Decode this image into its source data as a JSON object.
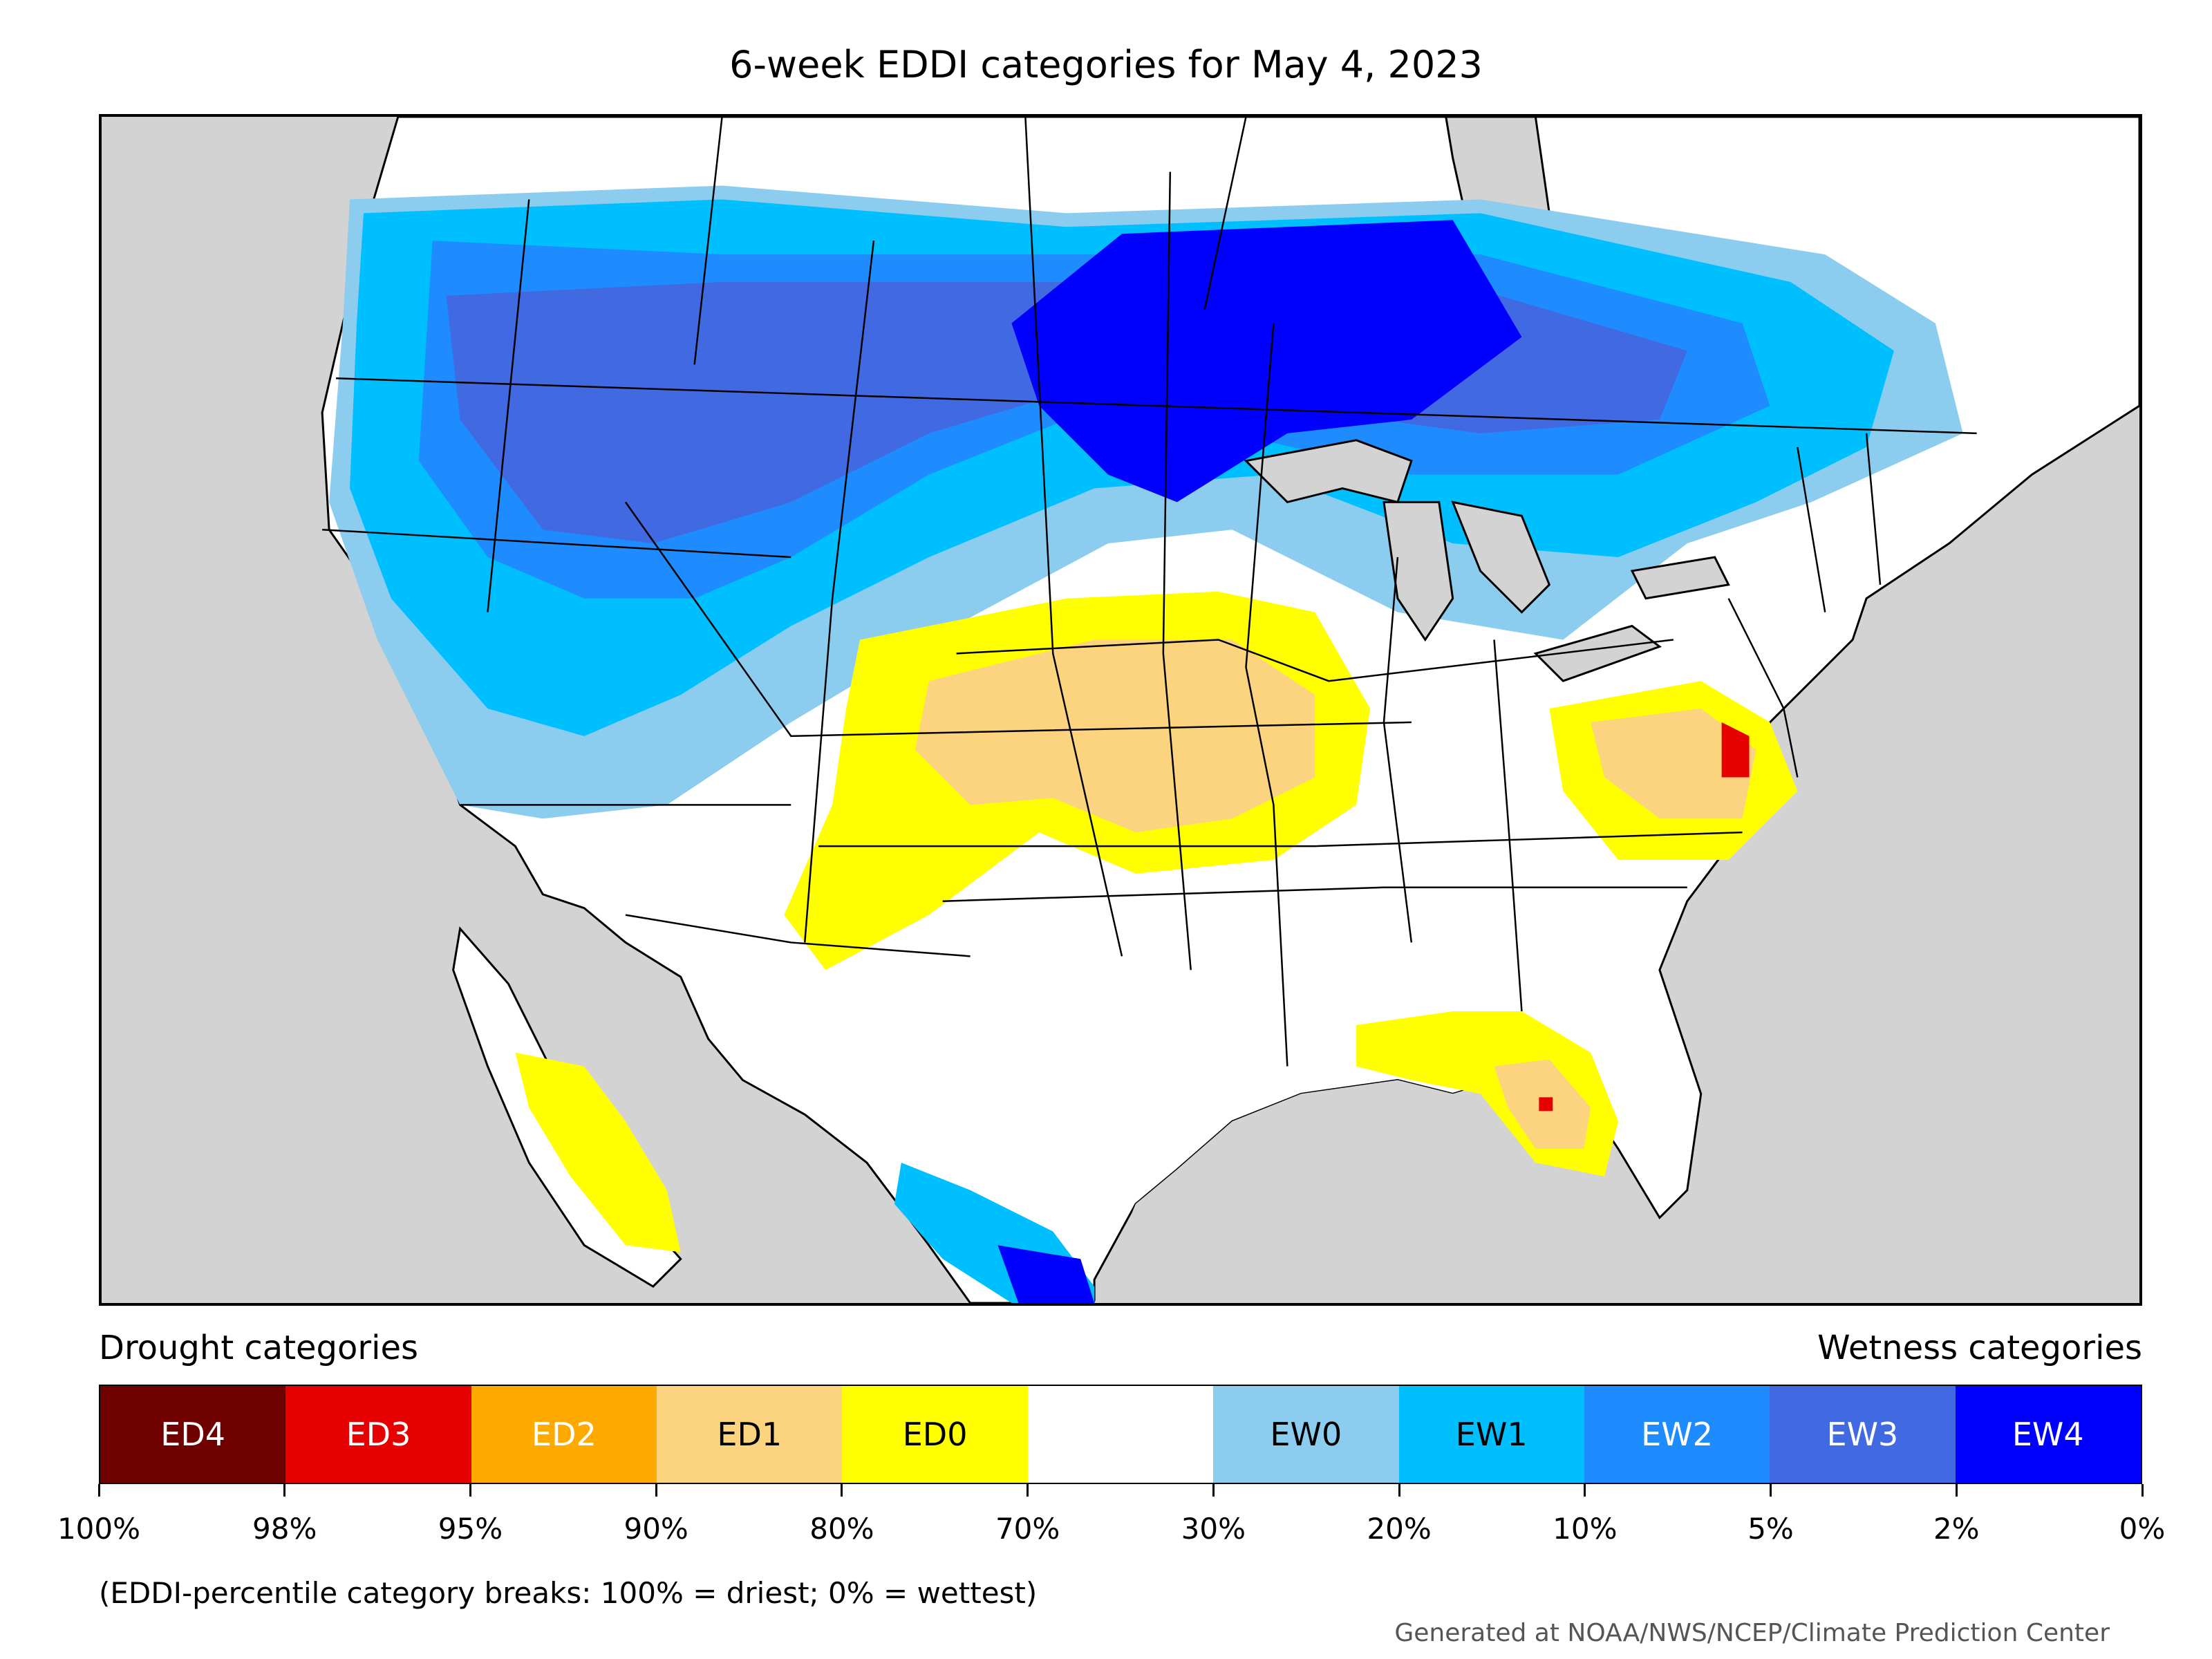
{
  "title": "6-week EDDI categories for May 4, 2023",
  "legend": {
    "left_heading": "Drought categories",
    "right_heading": "Wetness categories",
    "categories": [
      {
        "label": "ED4",
        "color": "#6e0000",
        "text_color": "#ffffff"
      },
      {
        "label": "ED3",
        "color": "#e60000",
        "text_color": "#ffffff"
      },
      {
        "label": "ED2",
        "color": "#ffaa00",
        "text_color": "#ffffff"
      },
      {
        "label": "ED1",
        "color": "#fcd37f",
        "text_color": "#000000"
      },
      {
        "label": "ED0",
        "color": "#ffff00",
        "text_color": "#000000"
      },
      {
        "label": "",
        "color": "#ffffff",
        "text_color": "#000000"
      },
      {
        "label": "EW0",
        "color": "#8ccdef",
        "text_color": "#000000"
      },
      {
        "label": "EW1",
        "color": "#00bfff",
        "text_color": "#000000"
      },
      {
        "label": "EW2",
        "color": "#1e8cff",
        "text_color": "#ffffff"
      },
      {
        "label": "EW3",
        "color": "#4169e1",
        "text_color": "#ffffff"
      },
      {
        "label": "EW4",
        "color": "#0000ff",
        "text_color": "#ffffff"
      }
    ],
    "breaks": [
      "100%",
      "98%",
      "95%",
      "90%",
      "80%",
      "70%",
      "30%",
      "20%",
      "10%",
      "5%",
      "2%",
      "0%"
    ]
  },
  "note": "(EDDI-percentile category breaks: 100% = driest; 0% = wettest)",
  "credit": "Generated at NOAA/NWS/NCEP/Climate Prediction Center",
  "map_colors": {
    "background": "#d3d3d3",
    "land": "#ffffff",
    "boundary": "#000000"
  }
}
